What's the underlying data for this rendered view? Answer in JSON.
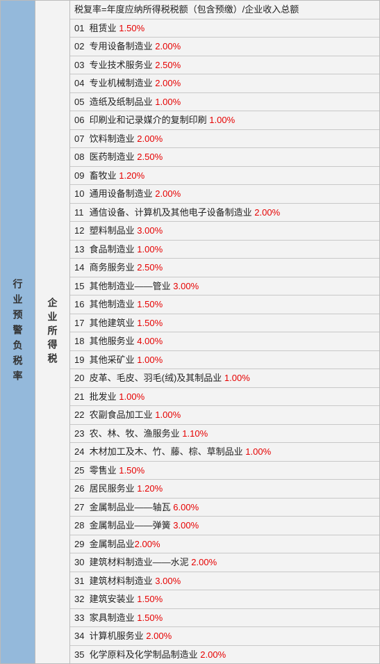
{
  "left_label": "行业预警负税率",
  "mid_label": "企业所得税",
  "header_formula": "税复率=年度应纳所得税税额（包含预缴）/企业收入总额",
  "colors": {
    "left_bg": "#94b9db",
    "main_bg": "#f3f3f3",
    "rate_color": "#e60000",
    "border_color": "#bbbbbb",
    "row_border": "#c8c8c8",
    "text_color": "#222222"
  },
  "font_size": 13,
  "rows": [
    {
      "num": "01",
      "name": "租赁业",
      "rate": "1.50%"
    },
    {
      "num": "02",
      "name": "专用设备制造业",
      "rate": "2.00%"
    },
    {
      "num": "03",
      "name": "专业技术服务业",
      "rate": "2.50%"
    },
    {
      "num": "04",
      "name": "专业机械制造业",
      "rate": "2.00%"
    },
    {
      "num": "05",
      "name": "造纸及纸制品业",
      "rate": "1.00%"
    },
    {
      "num": "06",
      "name": "印刷业和记录媒介的复制印刷",
      "rate": "1.00%"
    },
    {
      "num": "07",
      "name": "饮料制造业",
      "rate": "2.00%"
    },
    {
      "num": "08",
      "name": "医药制造业",
      "rate": "2.50%"
    },
    {
      "num": "09",
      "name": "畜牧业",
      "rate": "1.20%"
    },
    {
      "num": "10",
      "name": "通用设备制造业",
      "rate": "2.00%"
    },
    {
      "num": "11",
      "name": "通信设备、计算机及其他电子设备制造业",
      "rate": "2.00%"
    },
    {
      "num": "12",
      "name": "塑料制品业",
      "rate": "3.00%"
    },
    {
      "num": "13",
      "name": "食品制造业",
      "rate": "1.00%"
    },
    {
      "num": "14",
      "name": "商务服务业",
      "rate": "2.50%"
    },
    {
      "num": "15",
      "name": "其他制造业——管业",
      "rate": "3.00%"
    },
    {
      "num": "16",
      "name": "其他制造业",
      "rate": "1.50%"
    },
    {
      "num": "17",
      "name": "其他建筑业",
      "rate": "1.50%"
    },
    {
      "num": "18",
      "name": "其他服务业",
      "rate": "4.00%"
    },
    {
      "num": "19",
      "name": "其他采矿业",
      "rate": "1.00%"
    },
    {
      "num": "20",
      "name": "皮革、毛皮、羽毛(绒)及其制品业",
      "rate": "1.00%"
    },
    {
      "num": "21",
      "name": "批发业",
      "rate": "1.00%"
    },
    {
      "num": "22",
      "name": "农副食品加工业",
      "rate": "1.00%"
    },
    {
      "num": "23",
      "name": "农、林、牧、渔服务业",
      "rate": "1.10%"
    },
    {
      "num": "24",
      "name": "木材加工及木、竹、藤、棕、草制品业",
      "rate": "1.00%"
    },
    {
      "num": "25",
      "name": "零售业",
      "rate": "1.50%"
    },
    {
      "num": "26",
      "name": "居民服务业",
      "rate": "1.20%"
    },
    {
      "num": "27",
      "name": "金属制品业——轴瓦",
      "rate": "6.00%"
    },
    {
      "num": "28",
      "name": "金属制品业——弹簧",
      "rate": "3.00%"
    },
    {
      "num": "29",
      "name": "金属制品业",
      "rate": "2.00%",
      "nospace": true
    },
    {
      "num": "30",
      "name": "建筑材料制造业——水泥",
      "rate": "2.00%"
    },
    {
      "num": "31",
      "name": "建筑材料制造业",
      "rate": "3.00%"
    },
    {
      "num": "32",
      "name": "建筑安装业",
      "rate": "1.50%"
    },
    {
      "num": "33",
      "name": "家具制造业",
      "rate": "1.50%"
    },
    {
      "num": "34",
      "name": "计算机服务业",
      "rate": "2.00%"
    },
    {
      "num": "35",
      "name": "化学原料及化学制品制造业",
      "rate": "2.00%"
    }
  ]
}
